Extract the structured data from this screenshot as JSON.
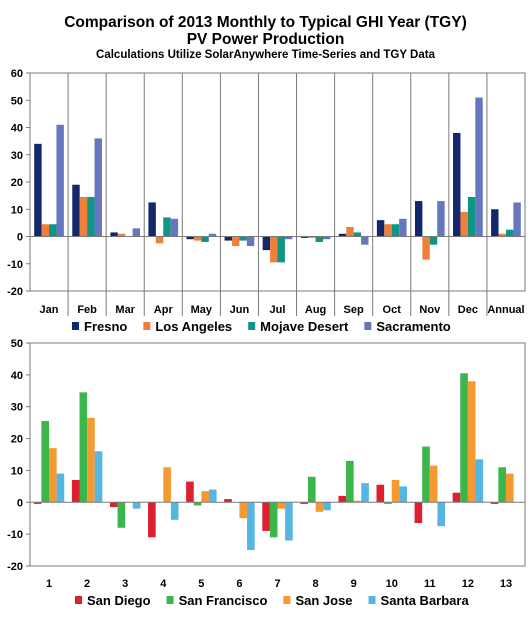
{
  "header": {
    "title_line1": "Comparison of 2013 Monthly to Typical GHI Year (TGY)",
    "title_line2": "PV Power Production",
    "subtitle": "Calculations Utilize SolarAnywhere Time-Series and TGY Data"
  },
  "chart_data": [
    {
      "type": "bar",
      "categories": [
        "Jan",
        "Feb",
        "Mar",
        "Apr",
        "May",
        "Jun",
        "Jul",
        "Aug",
        "Sep",
        "Oct",
        "Nov",
        "Dec",
        "Annual"
      ],
      "ylim": [
        -20,
        60
      ],
      "yticks": [
        -20,
        -10,
        0,
        10,
        20,
        30,
        40,
        50,
        60
      ],
      "legend_position": "bottom",
      "grid": "vertical category separators",
      "series": [
        {
          "name": "Fresno",
          "color": "#13276b",
          "values": [
            34,
            19,
            1.5,
            12.5,
            -1,
            -1.5,
            -5,
            -0.5,
            1,
            6,
            13,
            38,
            10
          ]
        },
        {
          "name": "Los Angeles",
          "color": "#f07f3a",
          "values": [
            4.5,
            14.5,
            1,
            -2.5,
            -1.5,
            -3.5,
            -9.5,
            -0.5,
            3.5,
            4.5,
            -8.5,
            9,
            1
          ]
        },
        {
          "name": "Mojave Desert",
          "color": "#0e9585",
          "values": [
            4.5,
            14.5,
            0,
            7,
            -2,
            -1.5,
            -9.5,
            -2,
            1.5,
            4.5,
            -3,
            14.5,
            2.5
          ]
        },
        {
          "name": "Sacramento",
          "color": "#6677bf",
          "values": [
            41,
            36,
            3,
            6.5,
            1,
            -3.5,
            -1,
            -1,
            -3,
            6.5,
            13,
            51,
            12.5
          ]
        }
      ]
    },
    {
      "type": "bar",
      "categories": [
        "1",
        "2",
        "3",
        "4",
        "5",
        "6",
        "7",
        "8",
        "9",
        "10",
        "11",
        "12",
        "13"
      ],
      "ylim": [
        -20,
        50
      ],
      "yticks": [
        -20,
        -10,
        0,
        10,
        20,
        30,
        40,
        50
      ],
      "legend_position": "bottom",
      "grid": "none",
      "series": [
        {
          "name": "San Diego",
          "color": "#dc2030",
          "values": [
            -0.5,
            7,
            -1.5,
            -11,
            6.5,
            1,
            -9,
            -0.5,
            2,
            5.5,
            -6.5,
            3,
            -0.5
          ]
        },
        {
          "name": "San Francisco",
          "color": "#3cb54a",
          "values": [
            25.5,
            34.5,
            -8,
            0,
            -1,
            0,
            -11,
            8,
            13,
            -0.5,
            17.5,
            40.5,
            11
          ]
        },
        {
          "name": "San Jose",
          "color": "#f59a32",
          "values": [
            17,
            26.5,
            0,
            11,
            3.5,
            -5,
            -2,
            -3,
            0.5,
            7,
            11.5,
            38,
            9
          ]
        },
        {
          "name": "Santa Barbara",
          "color": "#55b6e4",
          "values": [
            9,
            16,
            -2,
            -5.5,
            4,
            -15,
            -12,
            -2.5,
            6,
            5,
            -7.5,
            13.5,
            0
          ]
        }
      ]
    }
  ]
}
